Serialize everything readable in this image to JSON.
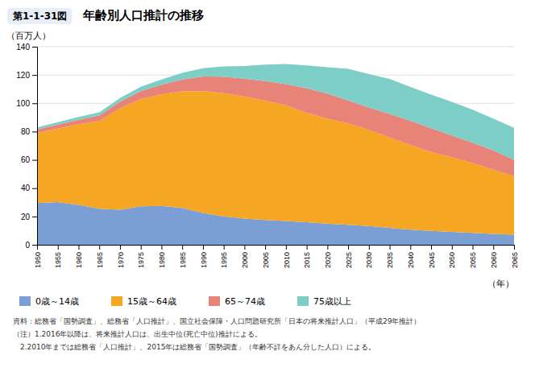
{
  "chart_data": {
    "type": "area",
    "stacked": true,
    "title": "年齢別人口推計の推移",
    "subtitle": "第1-1-31図",
    "ylabel": "（百万人）",
    "xlabel": "（年）",
    "x": [
      1950,
      1955,
      1960,
      1965,
      1970,
      1975,
      1980,
      1985,
      1990,
      1995,
      2000,
      2005,
      2010,
      2015,
      2020,
      2025,
      2030,
      2035,
      2040,
      2045,
      2050,
      2055,
      2060,
      2065
    ],
    "xlim": [
      1950,
      2065
    ],
    "xticks": [
      1950,
      1955,
      1960,
      1965,
      1970,
      1975,
      1980,
      1985,
      1990,
      1995,
      2000,
      2005,
      2010,
      2015,
      2020,
      2025,
      2030,
      2035,
      2040,
      2045,
      2050,
      2055,
      2060,
      2065
    ],
    "ylim": [
      0,
      140
    ],
    "yticks": [
      0,
      20,
      40,
      60,
      80,
      100,
      120,
      140
    ],
    "grid": true,
    "legend": "bottom",
    "series": [
      {
        "name": "0歳～14歳",
        "color": "#7b9fd4",
        "values": [
          29.4,
          30.1,
          28.1,
          25.5,
          24.8,
          27.2,
          27.5,
          26.0,
          22.5,
          20.0,
          18.5,
          17.5,
          16.8,
          15.9,
          15.0,
          14.1,
          13.2,
          12.0,
          10.7,
          9.8,
          9.1,
          8.4,
          7.7,
          7.1
        ]
      },
      {
        "name": "15歳～64歳",
        "color": "#f5a623",
        "values": [
          49.7,
          52.0,
          57.0,
          62.0,
          71.6,
          75.8,
          78.8,
          82.5,
          86.1,
          87.2,
          86.2,
          84.4,
          81.8,
          77.3,
          74.0,
          71.7,
          68.1,
          63.8,
          59.7,
          55.8,
          52.8,
          49.3,
          45.3,
          41.4
        ]
      },
      {
        "name": "65～74歳",
        "color": "#e8837a",
        "values": [
          2.4,
          2.8,
          3.2,
          3.8,
          4.7,
          5.6,
          6.8,
          8.3,
          10.3,
          11.6,
          12.7,
          13.8,
          15.0,
          17.5,
          17.8,
          16.2,
          15.7,
          16.7,
          17.2,
          16.8,
          15.3,
          14.4,
          13.7,
          11.5
        ]
      },
      {
        "name": "75歳以上",
        "color": "#7ecec8",
        "values": [
          1.5,
          1.7,
          2.0,
          2.3,
          2.6,
          3.1,
          3.7,
          4.7,
          5.9,
          7.2,
          9.0,
          11.6,
          14.2,
          16.1,
          18.7,
          22.4,
          23.7,
          24.7,
          24.0,
          23.8,
          23.8,
          23.3,
          22.5,
          22.7
        ]
      }
    ],
    "annotations": [
      "資料：総務省「国勢調査」、総務省「人口推計」、国立社会保障・人口問題研究所「日本の将来推計人口」（平成29年推計）",
      "（注）1.2016年以降は、将来推計人口は、出生中位(死亡中位)推計による。",
      "　2.2010年までは総務省「人口推計」、2015年は総務省「国勢調査」（年齢不詳をあん分した人口）による。"
    ]
  }
}
